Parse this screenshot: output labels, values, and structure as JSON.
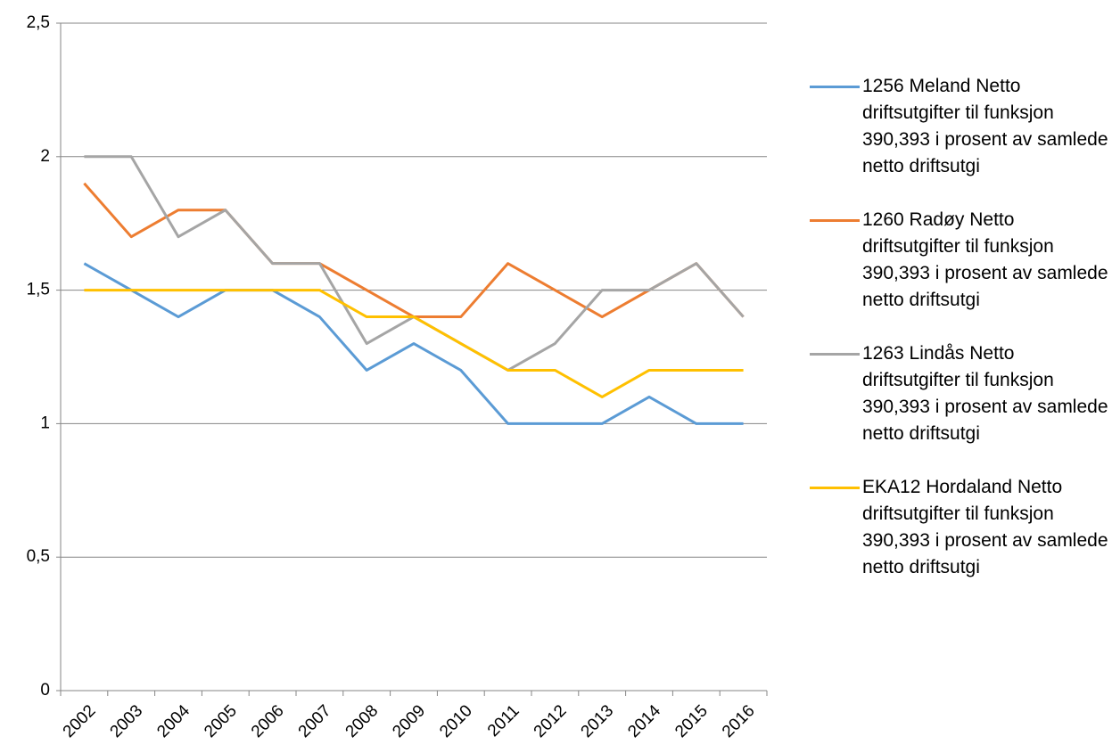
{
  "chart_data": {
    "type": "line",
    "categories": [
      "2002",
      "2003",
      "2004",
      "2005",
      "2006",
      "2007",
      "2008",
      "2009",
      "2010",
      "2011",
      "2012",
      "2013",
      "2014",
      "2015",
      "2016"
    ],
    "series": [
      {
        "name": "1256 Meland Netto driftsutgifter til funksjon 390,393 i prosent av samlede netto driftsutgi",
        "color": "#5b9bd5",
        "values": [
          1.6,
          1.5,
          1.4,
          1.5,
          1.5,
          1.4,
          1.2,
          1.3,
          1.2,
          1.0,
          1.0,
          1.0,
          1.1,
          1.0,
          1.0
        ]
      },
      {
        "name": "1260 Radøy Netto driftsutgifter til funksjon 390,393 i prosent av samlede netto driftsutgi",
        "color": "#ed7d31",
        "values": [
          1.9,
          1.7,
          1.8,
          1.8,
          1.6,
          1.6,
          1.5,
          1.4,
          1.4,
          1.6,
          1.5,
          1.4,
          1.5,
          1.6,
          1.4
        ]
      },
      {
        "name": "1263 Lindås Netto driftsutgifter til funksjon 390,393 i prosent av samlede netto driftsutgi",
        "color": "#a5a5a5",
        "values": [
          2.0,
          2.0,
          1.7,
          1.8,
          1.6,
          1.6,
          1.3,
          1.4,
          1.3,
          1.2,
          1.3,
          1.5,
          1.5,
          1.6,
          1.4
        ]
      },
      {
        "name": "EKA12 Hordaland Netto driftsutgifter til funksjon 390,393 i prosent av samlede netto driftsutgi",
        "color": "#ffc000",
        "values": [
          1.5,
          1.5,
          1.5,
          1.5,
          1.5,
          1.5,
          1.4,
          1.4,
          1.3,
          1.2,
          1.2,
          1.1,
          1.2,
          1.2,
          1.2
        ]
      }
    ],
    "ylim": [
      0,
      2.5
    ],
    "yticks": [
      0,
      {
        "value": 0.5,
        "label": "0,5"
      },
      1,
      {
        "value": 1.5,
        "label": "1,5"
      },
      2,
      {
        "value": 2.5,
        "label": "2,5"
      }
    ],
    "grid": true,
    "legend": "right"
  }
}
